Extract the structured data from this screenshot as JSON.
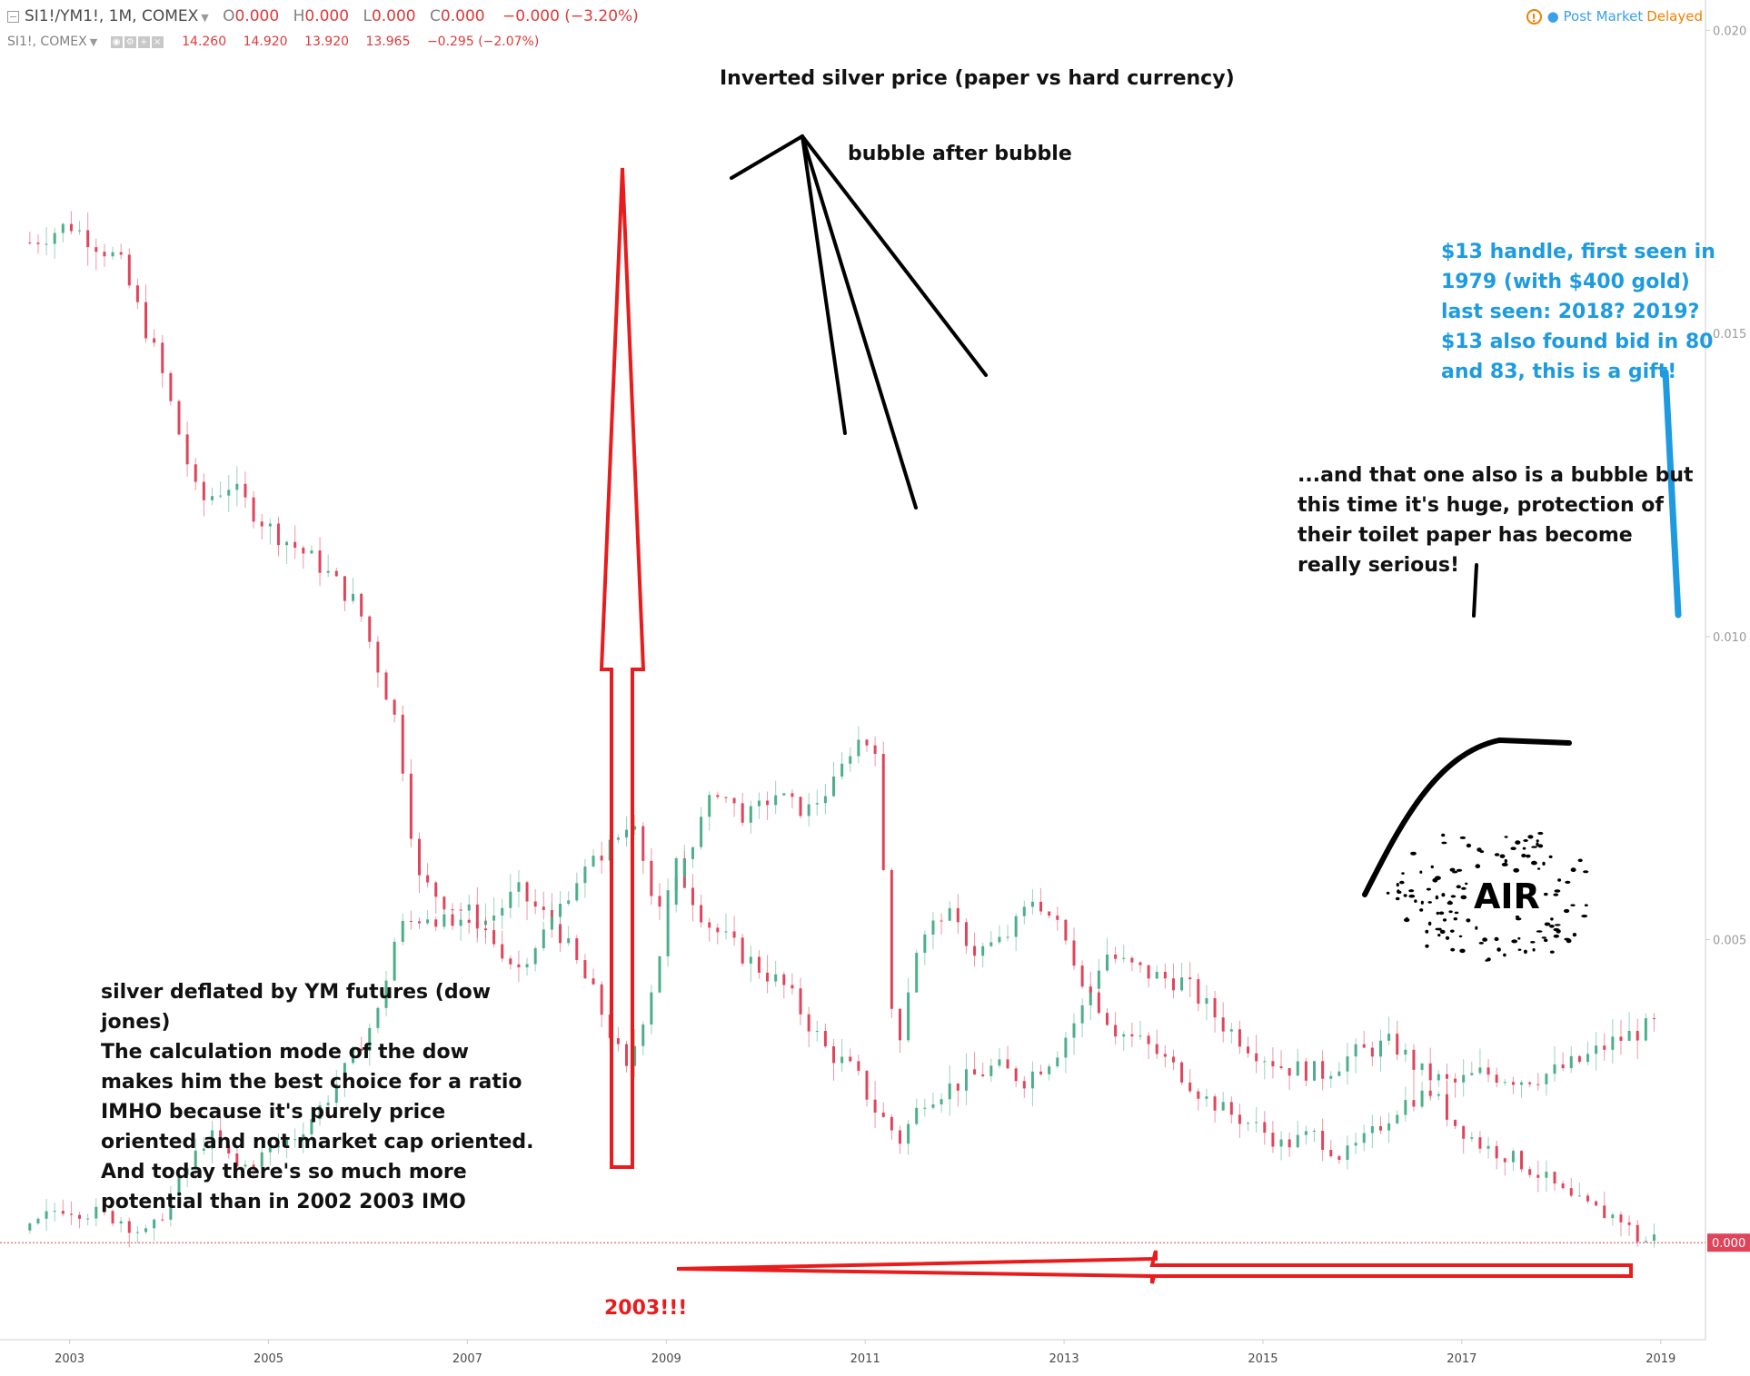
{
  "header": {
    "symbol": "SI1!/YM1!, 1M, COMEX",
    "ohlc": {
      "o": "0.000",
      "h": "0.000",
      "l": "0.000",
      "c": "0.000"
    },
    "change": "−0.000 (−3.20%)",
    "sub_symbol": "SI1!, COMEX",
    "sub_values": [
      "14.260",
      "14.920",
      "13.920",
      "13.965",
      "−0.295 (−2.07%)"
    ],
    "status_icon": "warning-icon",
    "status_label": "Post Market",
    "status_delayed": "Delayed"
  },
  "colors": {
    "up": "#4caf89",
    "down": "#e0445a",
    "arrow_red": "#e81c1c",
    "blue_line": "#1e9be0",
    "note_blue": "#1e9be0",
    "axis_text": "#9a9a9a"
  },
  "annotations": {
    "title": "Inverted silver price (paper vs hard currency)",
    "bubble": "bubble after bubble",
    "blue_note": [
      "$13 handle, first seen in",
      "1979 (with $400 gold)",
      "last seen: 2018? 2019?",
      "$13 also found bid in 80",
      "and 83, this is a gift!"
    ],
    "huge_bubble": [
      "...and that one also is a bubble but",
      "this time it's huge, protection of",
      "their toilet paper has become",
      "really serious!"
    ],
    "air": "AIR",
    "left_note": [
      "silver deflated by YM futures (dow",
      "jones)",
      "The calculation mode of the dow",
      "makes him the best choice for a ratio",
      "IMHO because it's purely price",
      "oriented and not market cap oriented.",
      "And today there's so much more",
      "potential than in 2002 2003 IMO"
    ],
    "year_2003": "2003!!!"
  },
  "chart_data": [
    {
      "type": "candlestick",
      "title": "SI1!/YM1!, 1M, COMEX",
      "xlabel": "",
      "ylabel": "",
      "y_axis_side": "right",
      "y_ticks": [
        "0.020",
        "0.015",
        "0.010",
        "0.005",
        "0.000"
      ],
      "y_tick_values": [
        0.02,
        0.015,
        0.01,
        0.005,
        0.0
      ],
      "ylim": [
        -0.0016,
        0.0205
      ],
      "x_ticks": [
        "2003",
        "2005",
        "2007",
        "2009",
        "2011",
        "2013",
        "2015",
        "2017",
        "2019"
      ],
      "x_tick_values": [
        2003,
        2005,
        2007,
        2009,
        2011,
        2013,
        2015,
        2017,
        2019
      ],
      "xlim": [
        2002.3,
        2019.45
      ],
      "last_value_label": "0.000",
      "series": [
        {
          "name": "SI1!/YM1!",
          "points": [
            [
              2002.6,
              0.0165
            ],
            [
              2003.0,
              0.0168
            ],
            [
              2003.5,
              0.0162
            ],
            [
              2003.9,
              0.0145
            ],
            [
              2004.3,
              0.0122
            ],
            [
              2004.6,
              0.0125
            ],
            [
              2005.0,
              0.0118
            ],
            [
              2005.5,
              0.0112
            ],
            [
              2005.9,
              0.0105
            ],
            [
              2006.3,
              0.0085
            ],
            [
              2006.5,
              0.006
            ],
            [
              2006.8,
              0.0056
            ],
            [
              2007.2,
              0.0053
            ],
            [
              2007.5,
              0.0058
            ],
            [
              2007.9,
              0.0052
            ],
            [
              2008.3,
              0.004
            ],
            [
              2008.6,
              0.0028
            ],
            [
              2008.9,
              0.0045
            ],
            [
              2009.1,
              0.0062
            ],
            [
              2009.4,
              0.0053
            ],
            [
              2009.8,
              0.0047
            ],
            [
              2010.2,
              0.0042
            ],
            [
              2010.6,
              0.0032
            ],
            [
              2010.9,
              0.0028
            ],
            [
              2011.1,
              0.0022
            ],
            [
              2011.35,
              0.0017
            ],
            [
              2011.6,
              0.0024
            ],
            [
              2011.9,
              0.0026
            ],
            [
              2012.3,
              0.0029
            ],
            [
              2012.6,
              0.0027
            ],
            [
              2012.9,
              0.0031
            ],
            [
              2013.2,
              0.0039
            ],
            [
              2013.4,
              0.0048
            ],
            [
              2013.6,
              0.0046
            ],
            [
              2013.9,
              0.0044
            ],
            [
              2014.2,
              0.0043
            ],
            [
              2014.6,
              0.0036
            ],
            [
              2014.9,
              0.0032
            ],
            [
              2015.2,
              0.0029
            ],
            [
              2015.6,
              0.0028
            ],
            [
              2015.9,
              0.0031
            ],
            [
              2016.3,
              0.0033
            ],
            [
              2016.6,
              0.0028
            ],
            [
              2016.9,
              0.0026
            ],
            [
              2017.2,
              0.0028
            ],
            [
              2017.6,
              0.0027
            ],
            [
              2017.9,
              0.0028
            ],
            [
              2018.2,
              0.003
            ],
            [
              2018.5,
              0.0033
            ],
            [
              2018.8,
              0.0035
            ],
            [
              2018.95,
              0.0036
            ]
          ]
        },
        {
          "name": "SI1!",
          "points": [
            [
              2002.6,
              0.0002
            ],
            [
              2002.9,
              0.0006
            ],
            [
              2003.2,
              0.0005
            ],
            [
              2003.5,
              0.0004
            ],
            [
              2003.8,
              0.0001
            ],
            [
              2004.1,
              0.001
            ],
            [
              2004.4,
              0.0018
            ],
            [
              2004.7,
              0.0012
            ],
            [
              2005.0,
              0.0015
            ],
            [
              2005.3,
              0.0018
            ],
            [
              2005.6,
              0.0024
            ],
            [
              2005.9,
              0.0032
            ],
            [
              2006.1,
              0.0038
            ],
            [
              2006.3,
              0.0052
            ],
            [
              2006.6,
              0.0054
            ],
            [
              2006.9,
              0.0052
            ],
            [
              2007.2,
              0.0051
            ],
            [
              2007.5,
              0.0045
            ],
            [
              2007.8,
              0.0052
            ],
            [
              2008.1,
              0.006
            ],
            [
              2008.4,
              0.0065
            ],
            [
              2008.7,
              0.007
            ],
            [
              2008.9,
              0.0053
            ],
            [
              2009.2,
              0.0064
            ],
            [
              2009.5,
              0.0075
            ],
            [
              2009.8,
              0.007
            ],
            [
              2010.1,
              0.0074
            ],
            [
              2010.4,
              0.0071
            ],
            [
              2010.7,
              0.0076
            ],
            [
              2010.9,
              0.0083
            ],
            [
              2011.1,
              0.0082
            ],
            [
              2011.3,
              0.003
            ],
            [
              2011.5,
              0.0048
            ],
            [
              2011.8,
              0.0055
            ],
            [
              2012.1,
              0.0048
            ],
            [
              2012.4,
              0.005
            ],
            [
              2012.7,
              0.0057
            ],
            [
              2012.95,
              0.0052
            ],
            [
              2013.2,
              0.0043
            ],
            [
              2013.5,
              0.0035
            ],
            [
              2013.8,
              0.0033
            ],
            [
              2014.1,
              0.0029
            ],
            [
              2014.4,
              0.0024
            ],
            [
              2014.7,
              0.0021
            ],
            [
              2014.95,
              0.0019
            ],
            [
              2015.2,
              0.0016
            ],
            [
              2015.5,
              0.0018
            ],
            [
              2015.8,
              0.0014
            ],
            [
              2016.1,
              0.0018
            ],
            [
              2016.4,
              0.0023
            ],
            [
              2016.7,
              0.0025
            ],
            [
              2016.9,
              0.002
            ],
            [
              2017.2,
              0.0016
            ],
            [
              2017.5,
              0.0014
            ],
            [
              2017.8,
              0.0011
            ],
            [
              2018.1,
              0.0007
            ],
            [
              2018.4,
              0.0005
            ],
            [
              2018.6,
              0.0004
            ],
            [
              2018.8,
              0.0
            ],
            [
              2018.95,
              0.0001
            ]
          ]
        }
      ]
    }
  ]
}
